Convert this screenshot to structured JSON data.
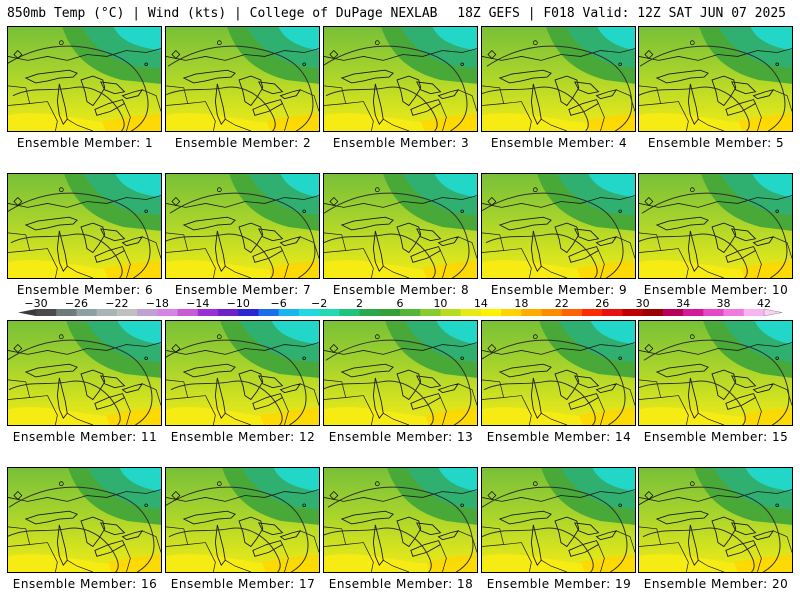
{
  "header": {
    "title": "850mb Temp (°C) | Wind (kts) | College of DuPage NEXLAB",
    "run_info": "18Z GEFS | F018 Valid: 12Z SAT JUN 07 2025"
  },
  "panels": [
    {
      "label": "Ensemble Member: 1"
    },
    {
      "label": "Ensemble Member: 2"
    },
    {
      "label": "Ensemble Member: 3"
    },
    {
      "label": "Ensemble Member: 4"
    },
    {
      "label": "Ensemble Member: 5"
    },
    {
      "label": "Ensemble Member: 6"
    },
    {
      "label": "Ensemble Member: 7"
    },
    {
      "label": "Ensemble Member: 8"
    },
    {
      "label": "Ensemble Member: 9"
    },
    {
      "label": "Ensemble Member: 10"
    },
    {
      "label": "Ensemble Member: 11"
    },
    {
      "label": "Ensemble Member: 12"
    },
    {
      "label": "Ensemble Member: 13"
    },
    {
      "label": "Ensemble Member: 14"
    },
    {
      "label": "Ensemble Member: 15"
    },
    {
      "label": "Ensemble Member: 16"
    },
    {
      "label": "Ensemble Member: 17"
    },
    {
      "label": "Ensemble Member: 18"
    },
    {
      "label": "Ensemble Member: 19"
    },
    {
      "label": "Ensemble Member: 20"
    }
  ],
  "colorbar": {
    "labels": [
      "−30",
      "−26",
      "−22",
      "−18",
      "−14",
      "−10",
      "−6",
      "−2",
      "2",
      "6",
      "10",
      "14",
      "18",
      "22",
      "26",
      "30",
      "34",
      "38",
      "42"
    ],
    "colors": [
      "#4a4a4a",
      "#6e7b7b",
      "#8fa0a0",
      "#a9b5b5",
      "#c0c0c0",
      "#bfa2d2",
      "#d685e6",
      "#c85ad8",
      "#9b2fd4",
      "#6b23c8",
      "#2a27d2",
      "#1a6ee6",
      "#1ab4ee",
      "#20d8e0",
      "#24d8b4",
      "#1ec47c",
      "#2aa84c",
      "#36a038",
      "#55b43a",
      "#88cc30",
      "#b8dc22",
      "#e8ea16",
      "#fff200",
      "#ffd400",
      "#ffae00",
      "#ff8c00",
      "#ff6200",
      "#ff2a00",
      "#e81010",
      "#c00000",
      "#9a0000",
      "#b8005a",
      "#d21a9a",
      "#e44ac8",
      "#f07ae0",
      "#f8b4f0"
    ]
  }
}
